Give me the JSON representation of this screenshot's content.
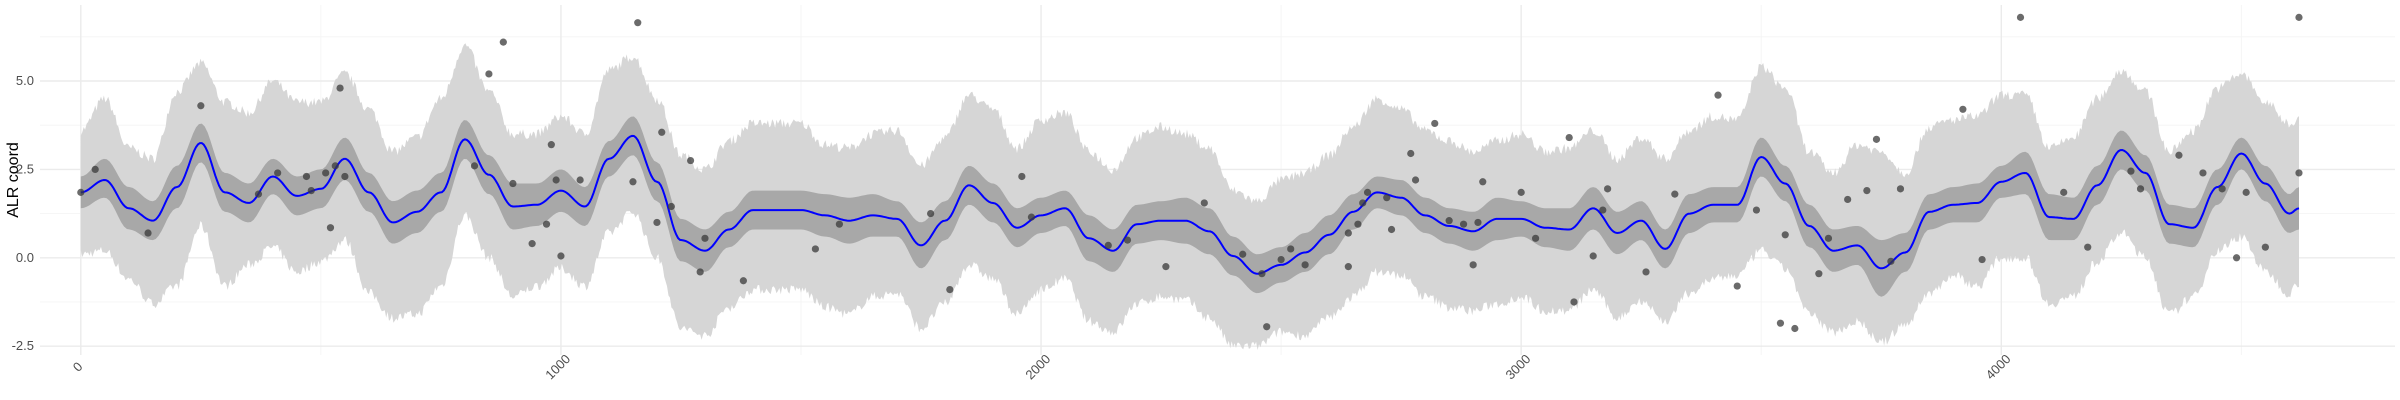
{
  "chart_data": {
    "type": "line",
    "title": "",
    "xlabel": "",
    "ylabel": "ALR coord",
    "xlim": [
      -85,
      4820
    ],
    "ylim": [
      -2.75,
      7.15
    ],
    "x_ticks": [
      0,
      1000,
      2000,
      3000,
      4000
    ],
    "x_tick_labels": [
      "0",
      "1000",
      "2000",
      "3000",
      "4000"
    ],
    "y_ticks": [
      -2.5,
      0.0,
      2.5,
      5.0
    ],
    "y_tick_labels": [
      "-2.5",
      "0.0",
      "2.5",
      "5.0"
    ],
    "x_minor_ticks": [
      500,
      1500,
      2500,
      3500,
      4500
    ],
    "y_minor_ticks": [
      -1.25,
      1.25,
      3.75,
      6.25
    ],
    "grid": true,
    "legend": "none",
    "colors": {
      "mean_line": "#0000ff",
      "inner_band": "#a8a8a8",
      "outer_band": "#d6d6d6",
      "points": "#3a3a3a",
      "grid": "#ebebeb"
    },
    "series": [
      {
        "type": "band_outer",
        "x": [
          0,
          50,
          100,
          150,
          200,
          250,
          300,
          350,
          400,
          450,
          500,
          550,
          600,
          650,
          700,
          750,
          800,
          850,
          900,
          950,
          1000,
          1050,
          1100,
          1150,
          1200,
          1250,
          1300,
          1350,
          1400,
          1450,
          1500,
          1550,
          1600,
          1650,
          1700,
          1750,
          1800,
          1850,
          1900,
          1950,
          2000,
          2050,
          2100,
          2150,
          2200,
          2250,
          2300,
          2350,
          2400,
          2450,
          2500,
          2550,
          2600,
          2650,
          2700,
          2750,
          2800,
          2850,
          2900,
          2950,
          3000,
          3050,
          3100,
          3150,
          3200,
          3250,
          3300,
          3350,
          3400,
          3450,
          3500,
          3550,
          3600,
          3650,
          3700,
          3750,
          3800,
          3850,
          3900,
          3950,
          4000,
          4050,
          4100,
          4150,
          4200,
          4250,
          4300,
          4350,
          4400,
          4450,
          4500,
          4550,
          4600,
          4620
        ],
        "upper": [
          3.6,
          4.5,
          3.1,
          2.8,
          4.7,
          5.5,
          4.4,
          4.1,
          5.0,
          4.4,
          4.4,
          5.2,
          4.2,
          3.0,
          3.4,
          4.5,
          6.0,
          4.7,
          3.5,
          3.5,
          4.0,
          3.5,
          5.3,
          5.7,
          4.5,
          2.9,
          2.5,
          3.3,
          3.8,
          3.8,
          3.8,
          3.2,
          3.1,
          3.5,
          3.6,
          2.6,
          3.4,
          4.6,
          4.2,
          3.1,
          3.9,
          4.1,
          3.0,
          2.5,
          3.4,
          3.7,
          3.5,
          3.1,
          1.9,
          1.6,
          2.2,
          2.4,
          2.9,
          3.7,
          4.5,
          4.2,
          3.6,
          3.3,
          3.0,
          3.3,
          3.5,
          3.0,
          3.1,
          3.6,
          2.8,
          3.4,
          2.8,
          3.6,
          4.0,
          3.9,
          5.4,
          4.8,
          3.0,
          2.4,
          3.2,
          3.0,
          2.4,
          3.7,
          3.9,
          4.0,
          4.6,
          4.6,
          3.1,
          3.4,
          4.5,
          5.3,
          4.7,
          3.0,
          3.6,
          4.8,
          5.2,
          4.4,
          3.8,
          3.9
        ],
        "lower": [
          0.1,
          0.2,
          -0.6,
          -1.3,
          -0.8,
          0.9,
          -0.8,
          -0.2,
          0.3,
          -0.4,
          -0.1,
          0.5,
          -1.0,
          -1.7,
          -1.6,
          -0.8,
          1.2,
          0.0,
          -1.1,
          -0.8,
          -0.3,
          -0.8,
          0.7,
          1.3,
          0.0,
          -2.0,
          -2.2,
          -1.4,
          -0.9,
          -0.9,
          -0.9,
          -1.4,
          -1.6,
          -1.1,
          -1.0,
          -2.0,
          -1.3,
          -0.2,
          -0.6,
          -1.6,
          -0.9,
          -0.6,
          -1.8,
          -2.1,
          -1.3,
          -1.1,
          -1.2,
          -1.7,
          -2.5,
          -2.5,
          -2.1,
          -2.2,
          -1.7,
          -1.1,
          -0.4,
          -0.5,
          -1.1,
          -1.4,
          -1.5,
          -1.3,
          -1.1,
          -1.5,
          -1.5,
          -0.9,
          -1.7,
          -1.2,
          -1.8,
          -1.0,
          -0.6,
          -0.5,
          0.2,
          -0.3,
          -1.6,
          -2.1,
          -1.8,
          -2.4,
          -1.9,
          -1.0,
          -0.5,
          -0.8,
          0.0,
          0.0,
          -1.3,
          -1.1,
          -0.1,
          0.7,
          0.0,
          -1.6,
          -1.1,
          0.2,
          0.6,
          -0.4,
          -1.0,
          -0.7
        ]
      },
      {
        "type": "band_inner",
        "x": [
          0,
          50,
          100,
          150,
          200,
          250,
          300,
          350,
          400,
          450,
          500,
          550,
          600,
          650,
          700,
          750,
          800,
          850,
          900,
          950,
          1000,
          1050,
          1100,
          1150,
          1200,
          1250,
          1300,
          1350,
          1400,
          1450,
          1500,
          1550,
          1600,
          1650,
          1700,
          1750,
          1800,
          1850,
          1900,
          1950,
          2000,
          2050,
          2100,
          2150,
          2200,
          2250,
          2300,
          2350,
          2400,
          2450,
          2500,
          2550,
          2600,
          2650,
          2700,
          2750,
          2800,
          2850,
          2900,
          2950,
          3000,
          3050,
          3100,
          3150,
          3200,
          3250,
          3300,
          3350,
          3400,
          3450,
          3500,
          3550,
          3600,
          3650,
          3700,
          3750,
          3800,
          3850,
          3900,
          3950,
          4000,
          4050,
          4100,
          4150,
          4200,
          4250,
          4300,
          4350,
          4400,
          4450,
          4500,
          4550,
          4600,
          4620
        ],
        "upper": [
          2.3,
          2.8,
          2.0,
          1.6,
          2.6,
          3.8,
          2.4,
          2.1,
          2.8,
          2.3,
          2.5,
          3.4,
          2.4,
          1.6,
          1.9,
          2.4,
          3.9,
          2.9,
          2.1,
          2.1,
          2.5,
          2.0,
          3.3,
          4.0,
          2.7,
          1.1,
          0.8,
          1.3,
          1.9,
          1.9,
          1.9,
          1.8,
          1.7,
          1.8,
          1.6,
          1.0,
          1.6,
          2.6,
          2.1,
          1.4,
          1.7,
          1.9,
          1.2,
          0.8,
          1.5,
          1.6,
          1.7,
          1.4,
          0.6,
          0.1,
          0.3,
          0.7,
          1.2,
          1.8,
          2.3,
          2.2,
          1.7,
          1.4,
          1.3,
          1.7,
          1.6,
          1.4,
          1.4,
          2.0,
          1.3,
          1.6,
          0.8,
          1.8,
          2.0,
          2.0,
          3.4,
          2.6,
          1.5,
          0.8,
          0.9,
          0.5,
          0.7,
          1.8,
          2.0,
          2.1,
          2.6,
          3.0,
          1.8,
          1.7,
          2.6,
          3.6,
          2.9,
          1.5,
          1.4,
          2.5,
          3.4,
          2.6,
          1.8,
          2.0
        ],
        "lower": [
          1.4,
          1.7,
          0.8,
          0.5,
          1.4,
          2.7,
          1.3,
          1.0,
          1.8,
          1.2,
          1.4,
          2.2,
          1.3,
          0.4,
          0.7,
          1.3,
          2.8,
          1.8,
          0.8,
          0.9,
          1.3,
          0.9,
          2.3,
          2.9,
          1.6,
          -0.1,
          -0.4,
          0.3,
          0.8,
          0.8,
          0.8,
          0.6,
          0.4,
          0.6,
          0.6,
          -0.3,
          0.5,
          1.5,
          1.0,
          0.3,
          0.7,
          0.9,
          -0.1,
          -0.4,
          0.4,
          0.5,
          0.4,
          0.1,
          -0.5,
          -1.0,
          -0.7,
          -0.4,
          0.1,
          0.8,
          1.4,
          1.2,
          0.7,
          0.4,
          0.2,
          0.5,
          0.6,
          0.3,
          0.2,
          0.8,
          0.1,
          0.5,
          -0.3,
          0.7,
          1.0,
          1.0,
          2.3,
          1.6,
          0.3,
          -0.4,
          -0.2,
          -1.1,
          -0.4,
          0.8,
          1.0,
          1.0,
          1.7,
          1.8,
          0.5,
          0.5,
          1.5,
          2.5,
          1.9,
          0.4,
          0.3,
          1.5,
          2.5,
          1.6,
          0.7,
          0.8
        ]
      },
      {
        "type": "line",
        "x": [
          0,
          50,
          100,
          150,
          200,
          250,
          300,
          350,
          400,
          450,
          500,
          550,
          600,
          650,
          700,
          750,
          800,
          850,
          900,
          950,
          1000,
          1050,
          1100,
          1150,
          1200,
          1250,
          1300,
          1350,
          1400,
          1450,
          1500,
          1550,
          1600,
          1650,
          1700,
          1750,
          1800,
          1850,
          1900,
          1950,
          2000,
          2050,
          2100,
          2150,
          2200,
          2250,
          2300,
          2350,
          2400,
          2450,
          2500,
          2550,
          2600,
          2650,
          2700,
          2750,
          2800,
          2850,
          2900,
          2950,
          3000,
          3050,
          3100,
          3150,
          3200,
          3250,
          3300,
          3350,
          3400,
          3450,
          3500,
          3550,
          3600,
          3650,
          3700,
          3750,
          3800,
          3850,
          3900,
          3950,
          4000,
          4050,
          4100,
          4150,
          4200,
          4250,
          4300,
          4350,
          4400,
          4450,
          4500,
          4550,
          4600,
          4620
        ],
        "y": [
          1.85,
          2.2,
          1.4,
          1.05,
          2.0,
          3.25,
          1.85,
          1.55,
          2.3,
          1.75,
          1.95,
          2.8,
          1.85,
          1.0,
          1.3,
          1.85,
          3.35,
          2.35,
          1.45,
          1.5,
          1.9,
          1.45,
          2.8,
          3.45,
          2.15,
          0.5,
          0.2,
          0.8,
          1.35,
          1.35,
          1.35,
          1.2,
          1.05,
          1.2,
          1.1,
          0.35,
          1.05,
          2.05,
          1.55,
          0.85,
          1.2,
          1.4,
          0.55,
          0.2,
          0.95,
          1.05,
          1.05,
          0.75,
          0.05,
          -0.45,
          -0.2,
          0.15,
          0.65,
          1.3,
          1.85,
          1.7,
          1.2,
          0.9,
          0.75,
          1.1,
          1.1,
          0.85,
          0.8,
          1.4,
          0.7,
          1.05,
          0.25,
          1.25,
          1.5,
          1.5,
          2.85,
          2.1,
          0.9,
          0.2,
          0.35,
          -0.3,
          0.15,
          1.3,
          1.5,
          1.55,
          2.15,
          2.4,
          1.15,
          1.1,
          2.05,
          3.05,
          2.4,
          0.95,
          0.85,
          2.0,
          2.95,
          2.1,
          1.25,
          1.4
        ]
      },
      {
        "type": "scatter",
        "x": [
          0,
          30,
          140,
          250,
          370,
          410,
          470,
          480,
          510,
          520,
          530,
          540,
          550,
          820,
          850,
          880,
          900,
          940,
          970,
          980,
          990,
          1000,
          1040,
          1150,
          1160,
          1200,
          1210,
          1230,
          1270,
          1290,
          1300,
          1380,
          1530,
          1580,
          1770,
          1810,
          1960,
          1980,
          2140,
          2180,
          2260,
          2340,
          2420,
          2460,
          2470,
          2500,
          2520,
          2550,
          2640,
          2640,
          2660,
          2670,
          2680,
          2720,
          2730,
          2770,
          2780,
          2820,
          2850,
          2880,
          2900,
          2910,
          2920,
          3000,
          3030,
          3100,
          3110,
          3150,
          3170,
          3180,
          3260,
          3320,
          3410,
          3450,
          3490,
          3540,
          3550,
          3570,
          3620,
          3640,
          3680,
          3720,
          3740,
          3770,
          3790,
          3920,
          3960,
          4040,
          4130,
          4180,
          4270,
          4290,
          4370,
          4420,
          4460,
          4490,
          4510,
          4550,
          4620,
          4620
        ],
        "y": [
          1.85,
          2.5,
          0.7,
          4.3,
          1.8,
          2.4,
          2.3,
          1.9,
          2.4,
          0.85,
          2.6,
          4.8,
          2.3,
          2.6,
          5.2,
          6.1,
          2.1,
          0.4,
          0.95,
          3.2,
          2.2,
          0.05,
          2.2,
          2.15,
          6.65,
          1.0,
          3.55,
          1.45,
          2.75,
          -0.4,
          0.55,
          -0.65,
          0.25,
          0.95,
          1.25,
          -0.9,
          2.3,
          1.15,
          0.35,
          0.5,
          -0.25,
          1.55,
          0.1,
          -0.45,
          -1.95,
          -0.05,
          0.25,
          -0.2,
          0.7,
          -0.25,
          0.95,
          1.55,
          1.85,
          1.7,
          0.8,
          2.95,
          2.2,
          3.8,
          1.05,
          0.95,
          -0.2,
          1.0,
          2.15,
          1.85,
          0.55,
          3.4,
          -1.25,
          0.05,
          1.35,
          1.95,
          -0.4,
          1.8,
          4.6,
          -0.8,
          1.35,
          -1.85,
          0.65,
          -2.0,
          -0.45,
          0.55,
          1.65,
          1.9,
          3.35,
          -0.1,
          1.95,
          4.2,
          -0.05,
          6.8,
          1.85,
          0.3,
          2.45,
          1.95,
          2.9,
          2.4,
          1.95,
          0.0,
          1.85,
          0.3,
          6.8,
          2.4
        ]
      }
    ]
  }
}
